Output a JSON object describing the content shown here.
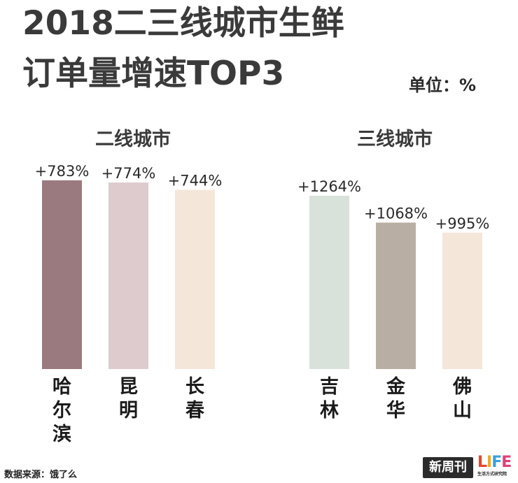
{
  "title": {
    "line1": "2018二三线城市生鲜",
    "line2": "订单量增速TOP3"
  },
  "unit_label": "单位：%",
  "source": "数据来源：饿了么",
  "logos": {
    "xinzhoukan": "新周刊",
    "life_word": "LIFE",
    "life_sub": "生活方式研究院"
  },
  "chart_data": {
    "type": "bar",
    "unit": "%",
    "groups": [
      {
        "name": "二线城市",
        "categories": [
          "哈尔滨",
          "昆明",
          "长春"
        ],
        "values": [
          783,
          774,
          744
        ],
        "labels": [
          "+783%",
          "+774%",
          "+744%"
        ],
        "colors": [
          "#9a7a7f",
          "#ddcbcd",
          "#f5e6da"
        ]
      },
      {
        "name": "三线城市",
        "categories": [
          "吉林",
          "金华",
          "佛山"
        ],
        "values": [
          1264,
          1068,
          995
        ],
        "labels": [
          "+1264%",
          "+1068%",
          "+995%"
        ],
        "colors": [
          "#d9e2da",
          "#b9aea3",
          "#f5e6da"
        ]
      }
    ]
  }
}
